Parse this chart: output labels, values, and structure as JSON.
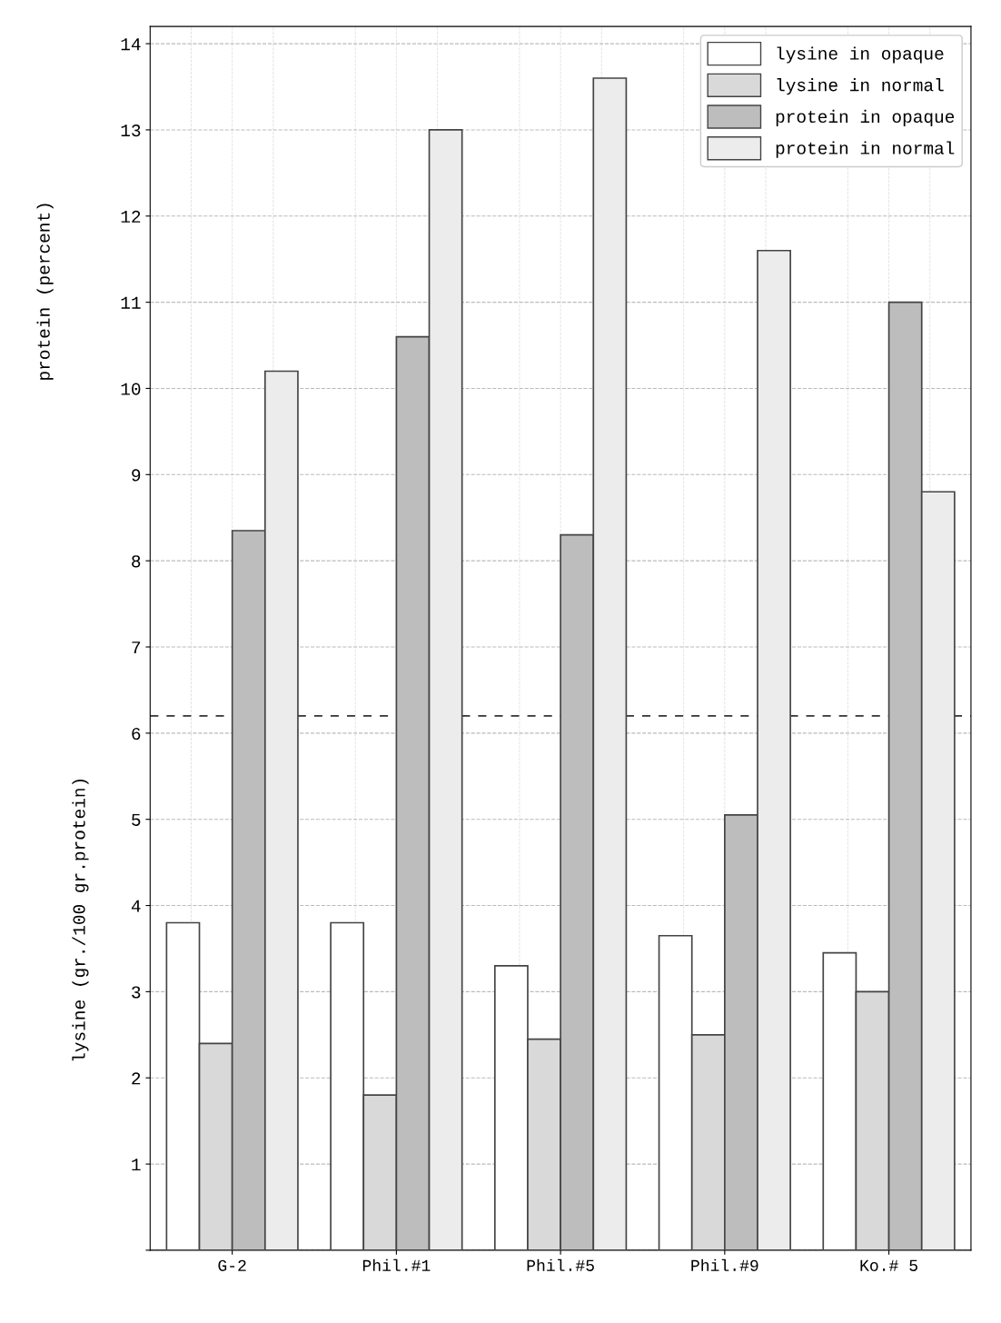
{
  "chart_data": {
    "type": "bar",
    "categories": [
      "G-2",
      "Phil.#1",
      "Phil.#5",
      "Phil.#9",
      "Ko.# 5"
    ],
    "series": [
      {
        "name": "lysine in opaque",
        "color": "#ffffff",
        "values": [
          3.8,
          3.8,
          3.3,
          3.65,
          3.45
        ]
      },
      {
        "name": "lysine in normal",
        "color": "#d9d9d9",
        "values": [
          2.4,
          1.8,
          2.45,
          2.5,
          3.0
        ]
      },
      {
        "name": "protein in opaque",
        "color": "#bdbdbd",
        "values": [
          8.35,
          10.6,
          8.3,
          5.05,
          11.0
        ]
      },
      {
        "name": "protein in normal",
        "color": "#ececec",
        "values": [
          10.2,
          13.0,
          13.6,
          11.6,
          8.8
        ]
      }
    ],
    "ylabel": "lysine (gr./100 gr.protein)",
    "annotations": [
      "protein (percent)"
    ],
    "ylim": [
      0,
      14.2
    ],
    "yticks": [
      {
        "value": 0,
        "label": null
      },
      1,
      2,
      3,
      4,
      5,
      6,
      7,
      8,
      9,
      10,
      11,
      12,
      13,
      14
    ],
    "ref_lines": [
      {
        "axis": "y",
        "value": 6.2,
        "line_style": "dashed",
        "color": "#333333"
      }
    ],
    "grid": true,
    "legend": "top right"
  }
}
